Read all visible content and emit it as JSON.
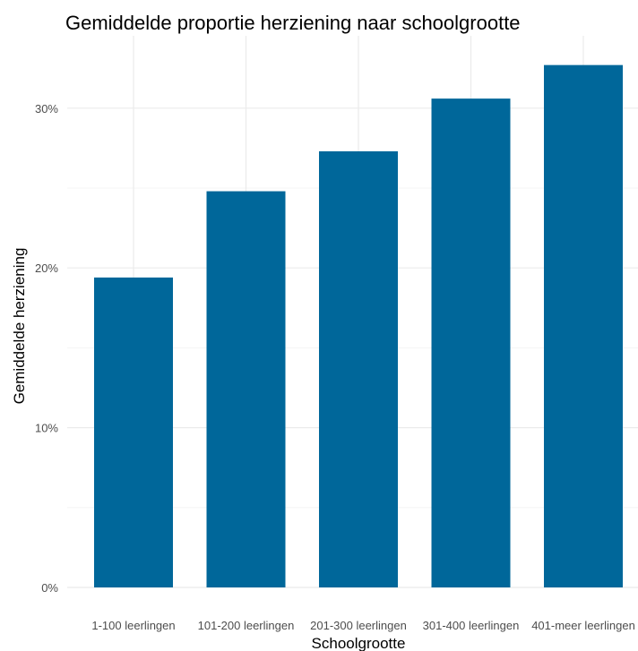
{
  "chart_data": {
    "type": "bar",
    "title": "Gemiddelde proportie herziening naar schoolgrootte",
    "xlabel": "Schoolgrootte",
    "ylabel": "Gemiddelde herziening",
    "categories": [
      "1-100 leerlingen",
      "101-200 leerlingen",
      "201-300 leerlingen",
      "301-400 leerlingen",
      "401-meer leerlingen"
    ],
    "values": [
      0.194,
      0.248,
      0.273,
      0.306,
      0.327
    ],
    "ylim": [
      0,
      0.33
    ],
    "yticks": [
      0,
      0.1,
      0.2,
      0.3
    ],
    "ytick_labels": [
      "0%",
      "10%",
      "20%",
      "30%"
    ],
    "bar_color": "#00679a",
    "grid": true,
    "legend": "none"
  }
}
